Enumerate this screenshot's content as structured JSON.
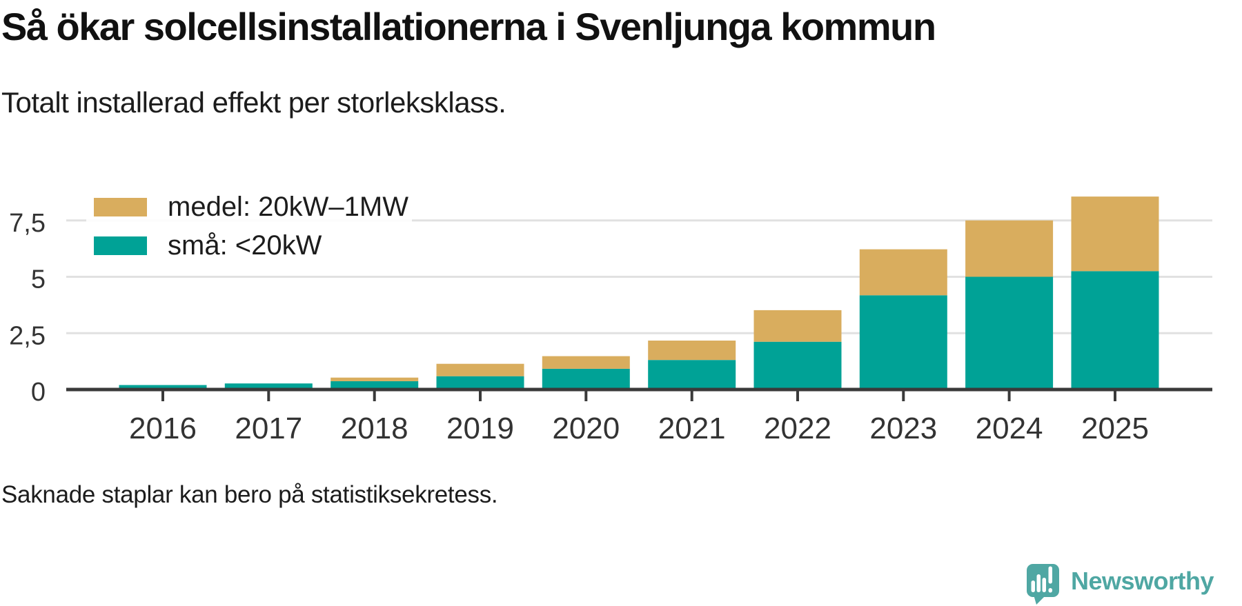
{
  "title": "Så ökar solcellsinstallationerna i Svenljunga kommun",
  "subtitle": "Totalt installerad effekt per storleksklass.",
  "footnote": "Saknade staplar kan bero på statistiksekretess.",
  "branding": {
    "name": "Newsworthy",
    "color": "#4fa7a3"
  },
  "colors": {
    "medel": "#d9ad5e",
    "sma": "#00a296",
    "axis": "#3a3a3a",
    "grid": "#e1e1e1",
    "tick_label": "#333333",
    "legend_text": "#1c1c1c"
  },
  "chart_data": {
    "type": "bar",
    "stacked": true,
    "categories": [
      "2016",
      "2017",
      "2018",
      "2019",
      "2020",
      "2021",
      "2022",
      "2023",
      "2024",
      "2025"
    ],
    "series": [
      {
        "key": "medel",
        "name": "medel: 20kW–1MW",
        "color": "#d9ad5e",
        "values": [
          0,
          0,
          0.16,
          0.55,
          0.56,
          0.86,
          1.4,
          2.04,
          2.5,
          3.31
        ]
      },
      {
        "key": "sma",
        "name": "små: <20kW",
        "color": "#00a296",
        "values": [
          0.2,
          0.27,
          0.37,
          0.59,
          0.92,
          1.31,
          2.12,
          4.18,
          5.0,
          5.25
        ]
      }
    ],
    "totals": [
      0.2,
      0.27,
      0.53,
      1.14,
      1.48,
      2.17,
      3.52,
      6.22,
      7.5,
      8.56
    ],
    "xlabel": "",
    "ylabel": "",
    "ylim": [
      0,
      8.8
    ],
    "yticks": [
      {
        "value": 0,
        "label": "0"
      },
      {
        "value": 2.5,
        "label": "2,5"
      },
      {
        "value": 5,
        "label": "5"
      },
      {
        "value": 7.5,
        "label": "7,5"
      }
    ],
    "grid": "horizontal",
    "legend_position": "top-left"
  }
}
